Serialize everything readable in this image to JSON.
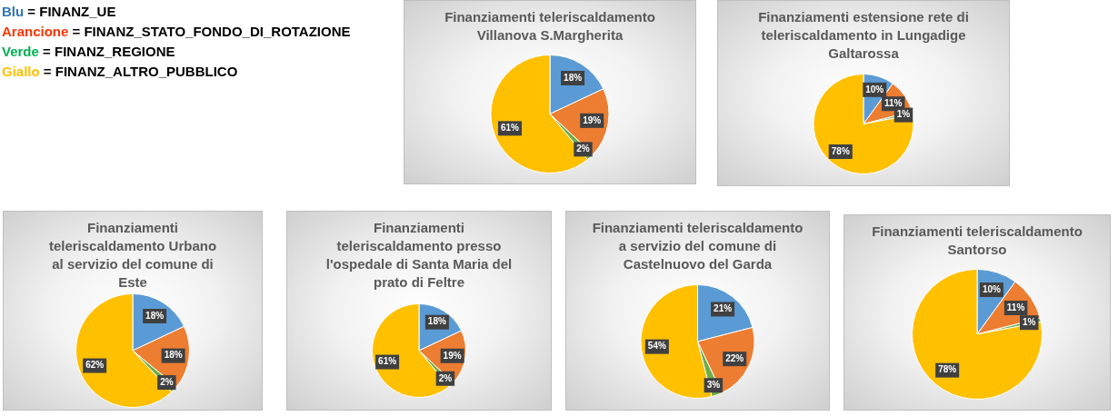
{
  "chart_data": [
    {
      "type": "other",
      "annotations": [
        "Blu = FINANZ_UE",
        "Arancione = FINANZ_STATO_FONDO_DI_ROTAZIONE",
        "Verde = FINANZ_REGIONE",
        "Giallo = FINANZ_ALTRO_PUBBLICO"
      ],
      "colors": [
        "#2e75b6",
        "#ff3300",
        "#00b050",
        "#ffc000"
      ]
    },
    {
      "type": "pie",
      "title": "Finanziamenti teleriscaldamento Villanova S.Margherita",
      "categories": [
        null,
        null,
        null,
        null
      ],
      "values": [
        18,
        19,
        2,
        61
      ],
      "value_labels": [
        "18%",
        "19%",
        "2%",
        "61%"
      ],
      "colors": [
        "#5b9bd5",
        "#ed7d31",
        "#70ad47",
        "#ffc000"
      ],
      "legend": false
    },
    {
      "type": "pie",
      "title": "Finanziamenti estensione rete di teleriscaldamento in Lungadige Galtarossa",
      "categories": [
        null,
        null,
        null,
        null
      ],
      "values": [
        10,
        11,
        1,
        78
      ],
      "value_labels": [
        "10%",
        "11%",
        "1%",
        "78%"
      ],
      "colors": [
        "#5b9bd5",
        "#ed7d31",
        "#70ad47",
        "#ffc000"
      ],
      "legend": false
    },
    {
      "type": "pie",
      "title": "Finanziamenti teleriscaldamento Urbano al servizio del comune di Este",
      "categories": [
        null,
        null,
        null,
        null
      ],
      "values": [
        18,
        18,
        2,
        62
      ],
      "value_labels": [
        "18%",
        "18%",
        "2%",
        "62%"
      ],
      "colors": [
        "#5b9bd5",
        "#ed7d31",
        "#70ad47",
        "#ffc000"
      ],
      "legend": false
    },
    {
      "type": "pie",
      "title": "Finanziamenti teleriscaldamento presso l'ospedale di Santa Maria del prato di Feltre",
      "categories": [
        null,
        null,
        null,
        null
      ],
      "values": [
        18,
        19,
        2,
        61
      ],
      "value_labels": [
        "18%",
        "19%",
        "2%",
        "61%"
      ],
      "colors": [
        "#5b9bd5",
        "#ed7d31",
        "#70ad47",
        "#ffc000"
      ],
      "legend": false
    },
    {
      "type": "pie",
      "title": "Finanziamenti teleriscaldamento a servizio del comune di Castelnuovo del Garda",
      "categories": [
        null,
        null,
        null,
        null
      ],
      "values": [
        21,
        22,
        3,
        54
      ],
      "value_labels": [
        "21%",
        "22%",
        "3%",
        "54%"
      ],
      "colors": [
        "#5b9bd5",
        "#ed7d31",
        "#70ad47",
        "#ffc000"
      ],
      "legend": false
    },
    {
      "type": "pie",
      "title": "Finanziamenti teleriscaldamento Santorso",
      "categories": [
        null,
        null,
        null,
        null
      ],
      "values": [
        10,
        11,
        1,
        78
      ],
      "value_labels": [
        "10%",
        "11%",
        "1%",
        "78%"
      ],
      "colors": [
        "#5b9bd5",
        "#ed7d31",
        "#70ad47",
        "#ffc000"
      ],
      "legend": false
    }
  ]
}
